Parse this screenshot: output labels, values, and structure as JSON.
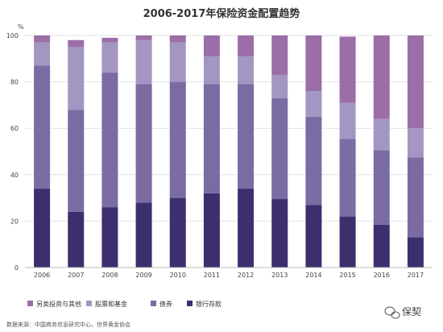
{
  "chart_data": {
    "type": "bar",
    "stacked": true,
    "title": "2006-2017年保险资金配置趋势",
    "ylabel": "%",
    "ylim": [
      0,
      100
    ],
    "yticks": [
      0,
      20,
      40,
      60,
      80,
      100
    ],
    "grid": true,
    "legend_position": "bottom-left",
    "categories": [
      "2006",
      "2007",
      "2008",
      "2009",
      "2010",
      "2011",
      "2012",
      "2013",
      "2014",
      "2015",
      "2016",
      "2017"
    ],
    "series": [
      {
        "name": "银行存款",
        "color": "#3d2f6e",
        "values": [
          34,
          24,
          26,
          28,
          30,
          32,
          34,
          29.5,
          27,
          22,
          18.5,
          13
        ]
      },
      {
        "name": "债券",
        "color": "#7b6ba3",
        "values": [
          53,
          44,
          58,
          51,
          50,
          47,
          45,
          43.5,
          38,
          33.5,
          32,
          34.5
        ]
      },
      {
        "name": "股票和基金",
        "color": "#a496c3",
        "values": [
          10,
          27,
          13,
          19,
          17,
          12,
          12,
          10,
          11,
          15.5,
          13.5,
          12.5
        ]
      },
      {
        "name": "另类投资与其他",
        "color": "#9c6ea8",
        "values": [
          3,
          3,
          2,
          2,
          3,
          9,
          9,
          17,
          24,
          28.5,
          36,
          40
        ]
      }
    ]
  },
  "legend_order": [
    3,
    2,
    1,
    0
  ],
  "source_text": "数据来源：中国商务信息研究中心，世界黄金协会",
  "watermark_text": "保契"
}
